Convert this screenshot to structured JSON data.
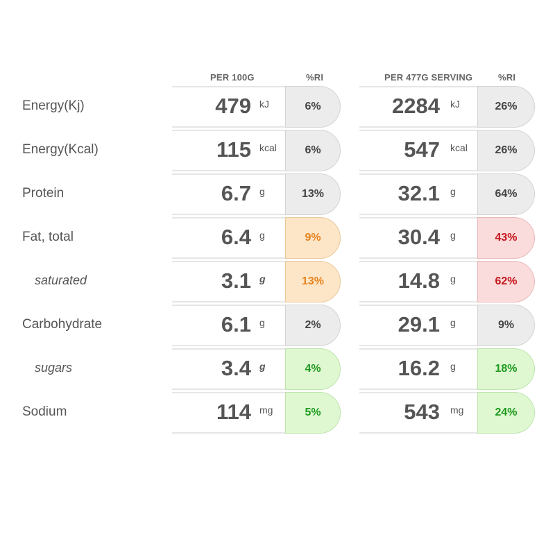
{
  "headers": {
    "per100": "PER 100G",
    "ri1": "%RI",
    "perServing": "PER 477G SERVING",
    "ri2": "%RI"
  },
  "colors": {
    "grey": "#ececec",
    "orange": "#fde6c7",
    "red": "#fbdcdc",
    "green": "#dff8d2"
  },
  "rows": [
    {
      "label": "Energy(Kj)",
      "v1": "479",
      "u1": "kJ",
      "ri1": "6%",
      "v2": "2284",
      "u2": "kJ",
      "ri2": "26%"
    },
    {
      "label": "Energy(Kcal)",
      "v1": "115",
      "u1": "kcal",
      "ri1": "6%",
      "v2": "547",
      "u2": "kcal",
      "ri2": "26%"
    },
    {
      "label": "Protein",
      "v1": "6.7",
      "u1": "g",
      "ri1": "13%",
      "v2": "32.1",
      "u2": "g",
      "ri2": "64%"
    },
    {
      "label": "Fat, total",
      "v1": "6.4",
      "u1": "g",
      "ri1": "9%",
      "v2": "30.4",
      "u2": "g",
      "ri2": "43%"
    },
    {
      "label": "saturated",
      "v1": "3.1",
      "u1": "g",
      "ri1": "13%",
      "v2": "14.8",
      "u2": "g",
      "ri2": "62%"
    },
    {
      "label": "Carbohydrate",
      "v1": "6.1",
      "u1": "g",
      "ri1": "2%",
      "v2": "29.1",
      "u2": "g",
      "ri2": "9%"
    },
    {
      "label": "sugars",
      "v1": "3.4",
      "u1": "g",
      "ri1": "4%",
      "v2": "16.2",
      "u2": "g",
      "ri2": "18%"
    },
    {
      "label": "Sodium",
      "v1": "114",
      "u1": "mg",
      "ri1": "5%",
      "v2": "543",
      "u2": "mg",
      "ri2": "24%"
    }
  ]
}
